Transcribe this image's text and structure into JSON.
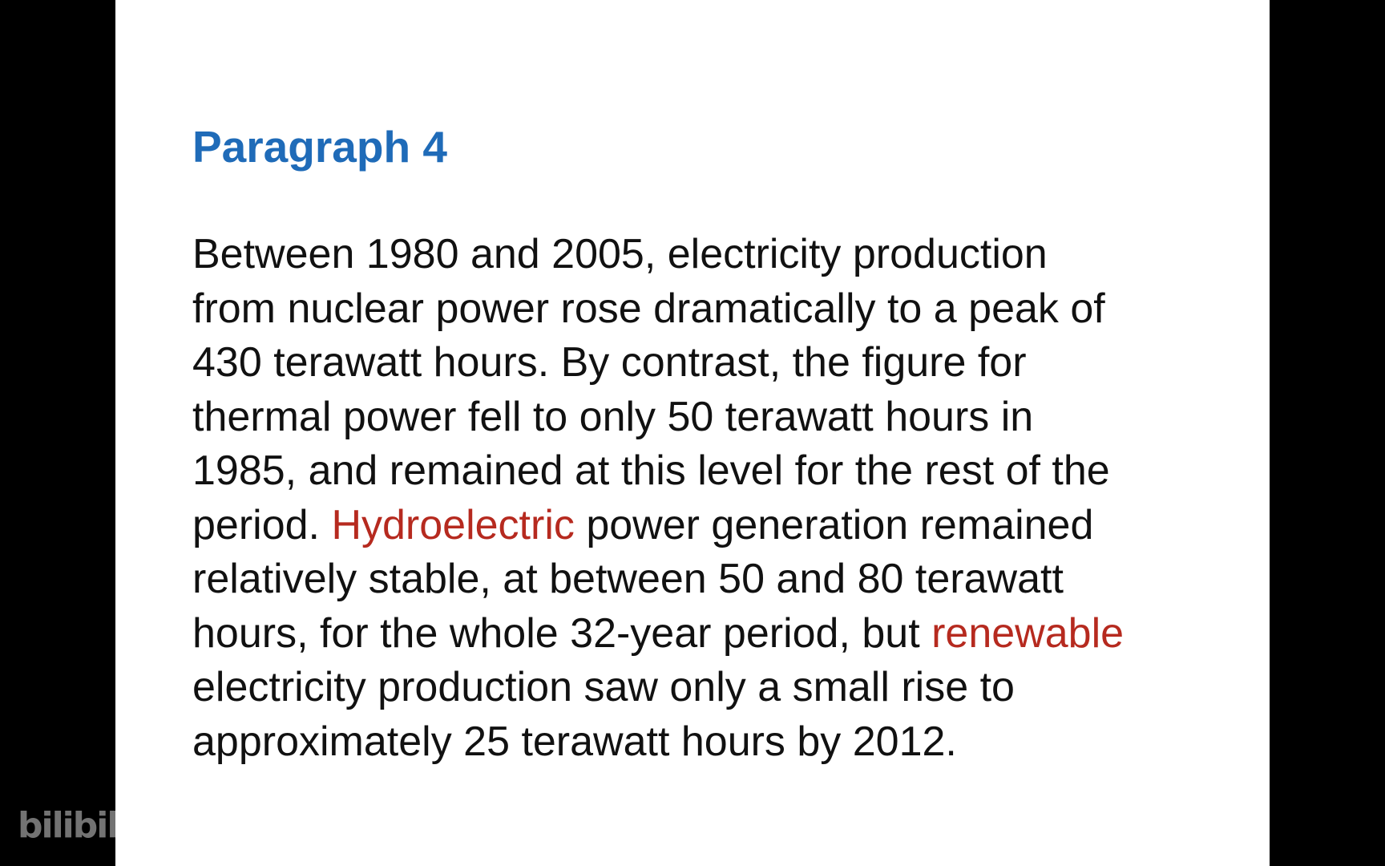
{
  "colors": {
    "background": "#000000",
    "slide": "#ffffff",
    "heading": "#1f6bb8",
    "text": "#111111",
    "highlight": "#b62a1f"
  },
  "slide": {
    "heading": "Paragraph 4",
    "lines": [
      {
        "segments": [
          {
            "text": "Between 1980 and 2005, electricity production"
          }
        ]
      },
      {
        "segments": [
          {
            "text": "from nuclear power rose dramatically to a peak of"
          }
        ]
      },
      {
        "segments": [
          {
            "text": "430 terawatt hours. By contrast, the figure for"
          }
        ]
      },
      {
        "segments": [
          {
            "text": "thermal power fell to only 50 terawatt hours in"
          }
        ]
      },
      {
        "segments": [
          {
            "text": "1985, and remained at this level for the rest of the"
          }
        ]
      },
      {
        "segments": [
          {
            "text": "period. "
          },
          {
            "text": "Hydroelectric",
            "highlight": true
          },
          {
            "text": " power generation remained"
          }
        ]
      },
      {
        "segments": [
          {
            "text": "relatively stable, at between 50 and 80 terawatt"
          }
        ]
      },
      {
        "segments": [
          {
            "text": "hours, for the whole 32-year period, but "
          },
          {
            "text": "renewable",
            "highlight": true
          }
        ]
      },
      {
        "segments": [
          {
            "text": "electricity production saw only a small rise to"
          }
        ]
      },
      {
        "segments": [
          {
            "text": "approximately 25 terawatt hours by 2012."
          }
        ]
      }
    ]
  },
  "watermark": {
    "text": "bilibili"
  }
}
